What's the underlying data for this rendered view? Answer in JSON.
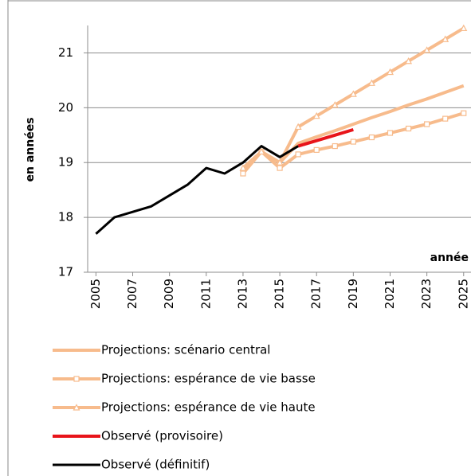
{
  "chart_data": {
    "type": "line",
    "y_label": "en années",
    "x_label": "année",
    "x": [
      2005,
      2006,
      2007,
      2008,
      2009,
      2010,
      2011,
      2012,
      2013,
      2014,
      2015,
      2016,
      2017,
      2018,
      2019,
      2020,
      2021,
      2022,
      2023,
      2024,
      2025
    ],
    "xlim": [
      2004.55,
      2025.4
    ],
    "xticks": [
      2005,
      2007,
      2009,
      2011,
      2013,
      2015,
      2017,
      2019,
      2021,
      2023,
      2025
    ],
    "ylim": [
      17,
      21.5
    ],
    "yticks": [
      17,
      18,
      19,
      20,
      21
    ],
    "grid": true,
    "legend": "bottom",
    "series": [
      {
        "name": "Projections: scénario central",
        "color": "#f7bb8c",
        "values": [
          null,
          null,
          null,
          null,
          null,
          null,
          null,
          null,
          18.9,
          19.2,
          19.0,
          19.35,
          19.47,
          19.58,
          19.7,
          19.82,
          19.93,
          20.05,
          20.16,
          20.28,
          20.4
        ]
      },
      {
        "name": "Projections: espérance de vie basse",
        "color": "#f7bb8c",
        "marker": "square",
        "values": [
          null,
          null,
          null,
          null,
          null,
          null,
          null,
          null,
          18.8,
          19.2,
          18.9,
          19.15,
          19.23,
          19.3,
          19.38,
          19.46,
          19.54,
          19.62,
          19.7,
          19.8,
          19.9
        ]
      },
      {
        "name": "Projections: espérance de vie haute",
        "color": "#f7bb8c",
        "marker": "triangle",
        "values": [
          null,
          null,
          null,
          null,
          null,
          null,
          null,
          null,
          18.9,
          19.2,
          19.0,
          19.65,
          19.85,
          20.05,
          20.25,
          20.45,
          20.65,
          20.85,
          21.05,
          21.25,
          21.45
        ]
      },
      {
        "name": "Observé (provisoire)",
        "color": "#e8141a",
        "values": [
          null,
          null,
          null,
          null,
          null,
          null,
          null,
          null,
          null,
          null,
          null,
          19.3,
          19.4,
          19.5,
          19.6,
          null,
          null,
          null,
          null,
          null,
          null
        ]
      },
      {
        "name": "Observé (définitif)",
        "color": "#000000",
        "values": [
          17.7,
          18.0,
          18.1,
          18.2,
          18.4,
          18.6,
          18.9,
          18.8,
          19.0,
          19.3,
          19.1,
          19.3,
          null,
          null,
          null,
          null,
          null,
          null,
          null,
          null,
          null
        ]
      }
    ]
  }
}
